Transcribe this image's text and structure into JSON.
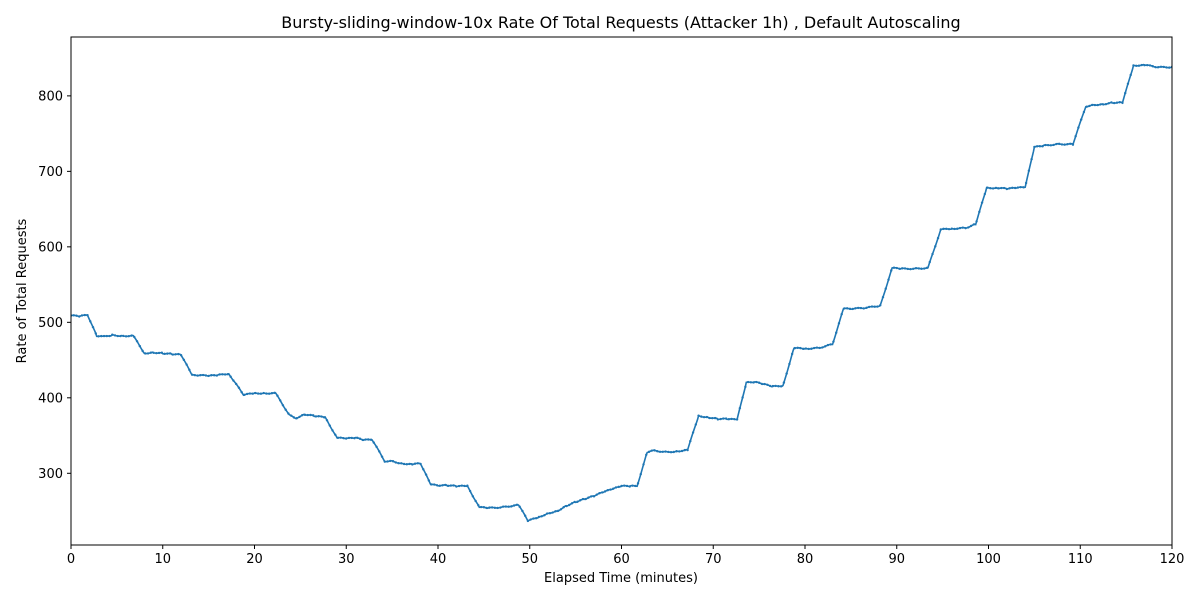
{
  "chart_data": {
    "type": "line",
    "title": "Bursty-sliding-window-10x Rate Of Total Requests (Attacker 1h) , Default Autoscaling",
    "xlabel": "Elapsed Time (minutes)",
    "ylabel": "Rate of Total Requests",
    "xlim": [
      0,
      120
    ],
    "ylim": [
      205,
      878
    ],
    "xticks": [
      0,
      10,
      20,
      30,
      40,
      50,
      60,
      70,
      80,
      90,
      100,
      110,
      120
    ],
    "yticks": [
      300,
      400,
      500,
      600,
      700,
      800
    ],
    "series": [
      {
        "name": "Rate of Total Requests",
        "color": "#1f77b4",
        "marker": "dot",
        "points": [
          [
            0,
            509
          ],
          [
            1,
            508
          ],
          [
            1.8,
            510
          ],
          [
            2.8,
            482
          ],
          [
            3.5,
            481
          ],
          [
            4.5,
            483
          ],
          [
            5.5,
            482
          ],
          [
            6.8,
            482
          ],
          [
            8,
            459
          ],
          [
            9,
            460
          ],
          [
            10,
            459
          ],
          [
            11,
            458
          ],
          [
            12,
            457
          ],
          [
            13.2,
            430
          ],
          [
            14,
            430
          ],
          [
            15,
            429
          ],
          [
            16,
            430
          ],
          [
            17.2,
            432
          ],
          [
            18.8,
            404
          ],
          [
            20,
            406
          ],
          [
            21,
            406
          ],
          [
            22.3,
            406
          ],
          [
            23.8,
            377
          ],
          [
            24.5,
            373
          ],
          [
            25.5,
            378
          ],
          [
            26.5,
            376
          ],
          [
            27.7,
            374
          ],
          [
            29,
            347
          ],
          [
            30,
            346
          ],
          [
            31,
            347
          ],
          [
            32,
            344
          ],
          [
            32.8,
            345
          ],
          [
            34.2,
            316
          ],
          [
            35,
            316
          ],
          [
            36,
            313
          ],
          [
            37.2,
            312
          ],
          [
            38.1,
            313
          ],
          [
            39.2,
            285
          ],
          [
            40,
            284
          ],
          [
            41,
            284
          ],
          [
            42,
            283
          ],
          [
            43.2,
            283
          ],
          [
            44.5,
            255
          ],
          [
            45.5,
            254
          ],
          [
            47,
            255
          ],
          [
            48.8,
            258
          ],
          [
            49.8,
            237
          ],
          [
            51,
            242
          ],
          [
            52,
            247
          ],
          [
            53,
            250
          ],
          [
            54,
            257
          ],
          [
            55,
            262
          ],
          [
            56,
            266
          ],
          [
            57,
            270
          ],
          [
            58,
            275
          ],
          [
            59,
            279
          ],
          [
            60,
            283
          ],
          [
            61,
            283
          ],
          [
            61.7,
            283
          ],
          [
            62.8,
            328
          ],
          [
            63.5,
            330
          ],
          [
            65,
            328
          ],
          [
            66,
            329
          ],
          [
            67.2,
            331
          ],
          [
            68.4,
            376
          ],
          [
            69.5,
            374
          ],
          [
            70.5,
            372
          ],
          [
            71.5,
            372
          ],
          [
            72.6,
            371
          ],
          [
            73.6,
            420
          ],
          [
            74.5,
            421
          ],
          [
            75.5,
            418
          ],
          [
            76.5,
            415
          ],
          [
            77.6,
            416
          ],
          [
            78.8,
            466
          ],
          [
            80,
            465
          ],
          [
            81.5,
            466
          ],
          [
            83,
            471
          ],
          [
            84.2,
            518
          ],
          [
            85,
            518
          ],
          [
            86.5,
            519
          ],
          [
            88.2,
            522
          ],
          [
            89.5,
            572
          ],
          [
            90.5,
            571
          ],
          [
            92,
            571
          ],
          [
            93.4,
            572
          ],
          [
            94.8,
            623
          ],
          [
            96,
            624
          ],
          [
            97.5,
            625
          ],
          [
            98.6,
            630
          ],
          [
            99.8,
            678
          ],
          [
            101,
            678
          ],
          [
            102,
            677
          ],
          [
            103,
            678
          ],
          [
            104,
            679
          ],
          [
            105,
            732
          ],
          [
            106,
            734
          ],
          [
            107.5,
            736
          ],
          [
            109.2,
            736
          ],
          [
            110.6,
            786
          ],
          [
            111.5,
            788
          ],
          [
            112.5,
            789
          ],
          [
            113.5,
            791
          ],
          [
            114.6,
            791
          ],
          [
            115.8,
            840
          ],
          [
            117,
            841
          ],
          [
            118.5,
            838
          ],
          [
            120,
            838
          ],
          [
            120.2,
            848
          ]
        ]
      }
    ]
  }
}
